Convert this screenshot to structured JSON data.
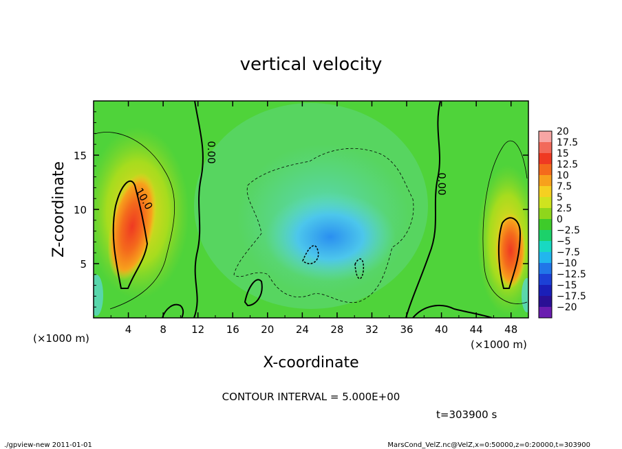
{
  "chart_data": {
    "type": "heatmap",
    "title": "vertical velocity",
    "xlabel": "X-coordinate",
    "ylabel": "Z-coordinate",
    "x_unit_left": "(×1000 m)",
    "x_unit_right": "(×1000 m)",
    "xlim": [
      0,
      50
    ],
    "ylim": [
      0,
      20
    ],
    "x_ticks": [
      "4",
      "8",
      "12",
      "16",
      "20",
      "24",
      "28",
      "32",
      "36",
      "40",
      "44",
      "48"
    ],
    "y_ticks": [
      "5",
      "10",
      "15"
    ],
    "contour_labels": [
      "0.00",
      "10.0",
      "0.00"
    ],
    "contour_interval": "CONTOUR INTERVAL = 5.000E+00",
    "time": "t=303900 s",
    "colorbar": {
      "labels": [
        "20",
        "17.5",
        "15",
        "12.5",
        "10",
        "7.5",
        "5",
        "2.5",
        "0",
        "−2.5",
        "−5",
        "−7.5",
        "−10",
        "−12.5",
        "−15",
        "−17.5",
        "−20"
      ],
      "colors": [
        "#f7a6a4",
        "#f26a5a",
        "#ef3a22",
        "#f46a1c",
        "#f7a11c",
        "#f5d021",
        "#cfe31f",
        "#8fd61c",
        "#3ecb2a",
        "#1cd16a",
        "#18d9c2",
        "#22b6ee",
        "#2176e8",
        "#1c40d6",
        "#1a1fb8",
        "#2a1095",
        "#6a1db0"
      ]
    },
    "grid": false,
    "legend": "right"
  },
  "footer": {
    "left": "./gpview-new  2011-01-01",
    "right": "MarsCond_VelZ.nc@VelZ,x=0:50000,z=0:20000,t=303900"
  }
}
